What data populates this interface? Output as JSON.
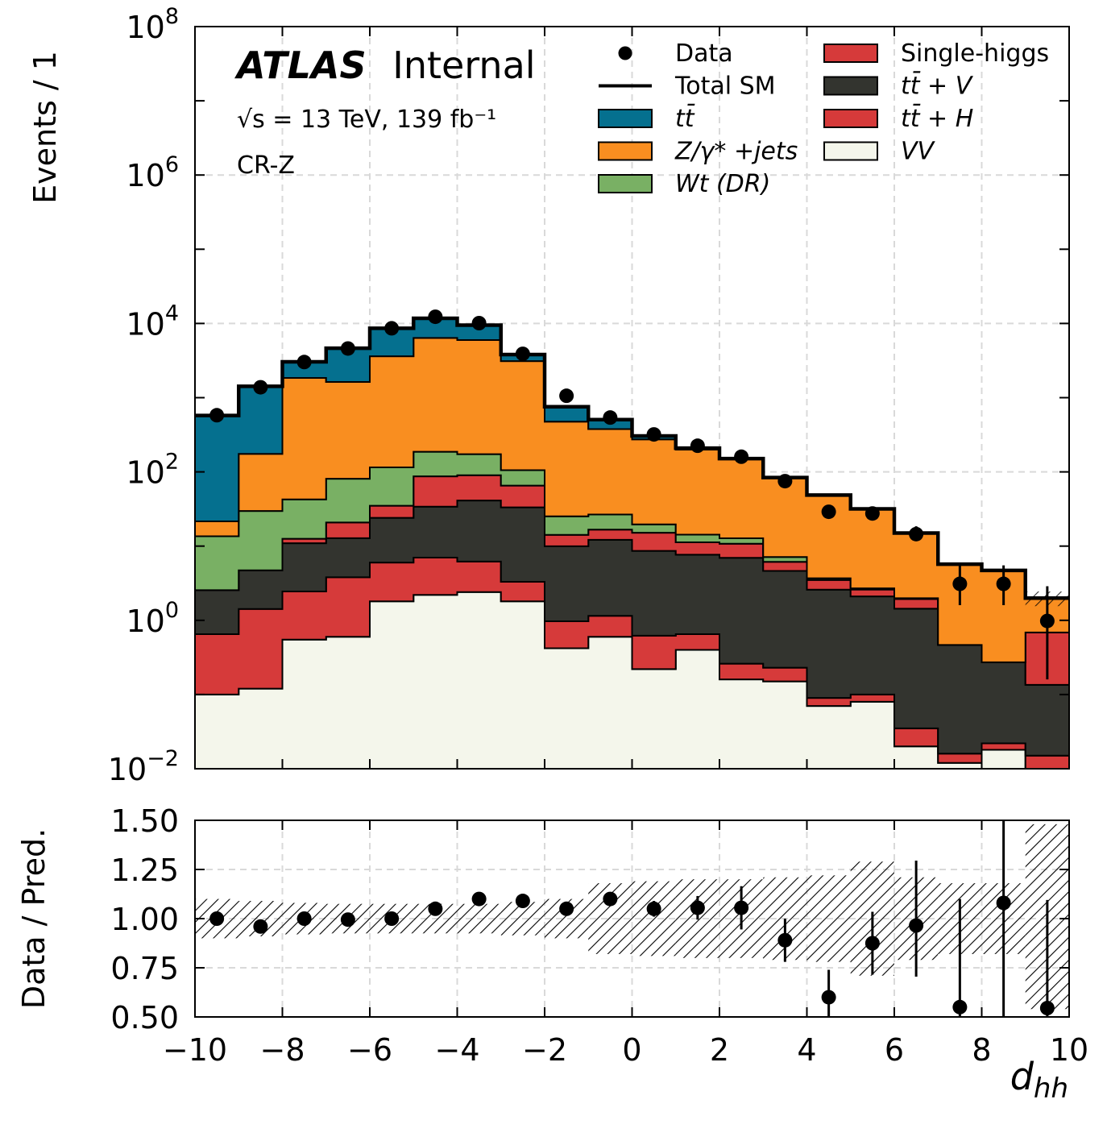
{
  "annotations": {
    "experiment": "ATLAS",
    "status": "Internal",
    "energy_lumi": "√s = 13 TeV, 139 fb⁻¹",
    "region": "CR-Z"
  },
  "chart_data": [
    {
      "type": "area",
      "subtype": "stacked-step-histogram-log",
      "ylabel": "Events / 1",
      "yscale": "log",
      "ylim": [
        0.01,
        100000000
      ],
      "xlim": [
        -10,
        10
      ],
      "bin_edges": [
        -10,
        -9,
        -8,
        -7,
        -6,
        -5,
        -4,
        -3,
        -2,
        -1,
        0,
        1,
        2,
        3,
        4,
        5,
        6,
        7,
        8,
        9,
        10
      ],
      "x_ticks": [
        -10,
        -8,
        -6,
        -4,
        -2,
        0,
        2,
        4,
        6,
        8,
        10
      ],
      "y_ticks": [
        {
          "value": 0.01,
          "base": "10",
          "exp": "−2"
        },
        {
          "value": 1,
          "base": "10",
          "exp": "0"
        },
        {
          "value": 100,
          "base": "10",
          "exp": "2"
        },
        {
          "value": 10000,
          "base": "10",
          "exp": "4"
        },
        {
          "value": 1000000,
          "base": "10",
          "exp": "6"
        },
        {
          "value": 100000000,
          "base": "10",
          "exp": "8"
        }
      ],
      "grid": true,
      "legend_position": "top-right",
      "series": [
        {
          "name": "VV",
          "color": "#f4f6eb",
          "values": [
            0.1,
            0.12,
            0.55,
            0.6,
            1.8,
            2.2,
            2.4,
            1.8,
            0.42,
            0.6,
            0.22,
            0.4,
            0.16,
            0.15,
            0.07,
            0.08,
            0.02,
            0.012,
            0.018,
            0.01
          ]
        },
        {
          "name": "Single-higgs",
          "color": "#d63a3a",
          "values": [
            0.55,
            1.3,
            1.9,
            3.2,
            4.2,
            4.8,
            3.8,
            1.5,
            0.55,
            0.55,
            0.4,
            0.25,
            0.1,
            0.08,
            0.02,
            0.02,
            0.015,
            0.004,
            0.004,
            0.005
          ]
        },
        {
          "name": "tt̄ + V",
          "color": "#33342f",
          "values": [
            1.9,
            3.3,
            8.5,
            9,
            18,
            27,
            35,
            30,
            9,
            11,
            8,
            7,
            6.7,
            4.4,
            2.5,
            2,
            1.4,
            0.45,
            0.25,
            0.12
          ]
        },
        {
          "name": "tt̄ + H",
          "color": "#d63a3a",
          "values": [
            0,
            0,
            1.6,
            8,
            11,
            53,
            49,
            32,
            4.2,
            4.5,
            6.5,
            3.6,
            3.8,
            1.5,
            0.9,
            0.5,
            0.5,
            0,
            0,
            0.55
          ]
        },
        {
          "name": "Wt (DR)",
          "color": "#79b064",
          "values": [
            11,
            25,
            30,
            60,
            80,
            100,
            83,
            40,
            11,
            10,
            4.5,
            3,
            2,
            1,
            0.2,
            0.1,
            0.05,
            0,
            0,
            0
          ]
        },
        {
          "name": "Z/γ* +jets",
          "color": "#f98e20",
          "values": [
            8,
            145,
            1800,
            1550,
            3500,
            6200,
            5800,
            3000,
            450,
            350,
            255,
            185,
            135,
            75,
            45,
            29,
            13,
            5.2,
            4.4,
            1.3
          ]
        },
        {
          "name": "tt̄",
          "color": "#05708f",
          "values": [
            550,
            1250,
            1200,
            3000,
            5000,
            5500,
            3500,
            700,
            280,
            130,
            30,
            10,
            3,
            2,
            0,
            0,
            0,
            0,
            0,
            0
          ]
        }
      ],
      "total_sm": [
        575,
        1425,
        3045,
        4632,
        8616,
        11730,
        9474,
        3805,
        755,
        506,
        305,
        209,
        151,
        84,
        48.7,
        31.7,
        15,
        5.7,
        4.7,
        1.99
      ],
      "data_points": {
        "name": "Data",
        "x": [
          -9.5,
          -8.5,
          -7.5,
          -6.5,
          -5.5,
          -4.5,
          -3.5,
          -2.5,
          -1.5,
          -0.5,
          0.5,
          1.5,
          2.5,
          3.5,
          4.5,
          5.5,
          6.5,
          7.5,
          8.5,
          9.5
        ],
        "y": [
          580,
          1380,
          3020,
          4600,
          8600,
          12300,
          10100,
          3900,
          1060,
          540,
          320,
          225,
          160,
          75,
          29,
          27.5,
          14.5,
          3.1,
          3.1,
          0.98
        ],
        "err_low": [
          0,
          0,
          0,
          0,
          0,
          0,
          0,
          0,
          0,
          0,
          0,
          0,
          0,
          0,
          0,
          0,
          2.5,
          1.5,
          1.5,
          0.82
        ],
        "err_high": [
          0,
          0,
          0,
          0,
          0,
          0,
          0,
          0,
          0,
          0,
          0,
          0,
          0,
          0,
          0,
          0,
          4.0,
          2.4,
          2.4,
          1.9
        ]
      },
      "uncertainty_label_hidden": true
    },
    {
      "type": "scatter",
      "subtype": "ratio-panel",
      "ylabel": "Data / Pred.",
      "xlabel": "d_hh",
      "ylim": [
        0.5,
        1.5
      ],
      "xlim": [
        -10,
        10
      ],
      "y_ticks": [
        "0.50",
        "0.75",
        "1.00",
        "1.25",
        "1.50"
      ],
      "y_tick_values": [
        0.5,
        0.75,
        1.0,
        1.25,
        1.5
      ],
      "x_tick_labels": [
        "−10",
        "−8",
        "−6",
        "−4",
        "−2",
        "0",
        "2",
        "4",
        "6",
        "8",
        "10"
      ],
      "x_tick_values": [
        -10,
        -8,
        -6,
        -4,
        -2,
        0,
        2,
        4,
        6,
        8,
        10
      ],
      "grid": true,
      "band_low": [
        0.9,
        0.91,
        0.92,
        0.925,
        0.925,
        0.925,
        0.925,
        0.915,
        0.9,
        0.82,
        0.81,
        0.8,
        0.8,
        0.79,
        0.78,
        0.71,
        0.79,
        0.82,
        0.82,
        0.54
      ],
      "band_high": [
        1.1,
        1.09,
        1.08,
        1.075,
        1.075,
        1.075,
        1.075,
        1.085,
        1.1,
        1.18,
        1.19,
        1.2,
        1.2,
        1.21,
        1.22,
        1.29,
        1.21,
        1.18,
        1.18,
        1.48
      ],
      "points": {
        "x": [
          -9.5,
          -8.5,
          -7.5,
          -6.5,
          -5.5,
          -4.5,
          -3.5,
          -2.5,
          -1.5,
          -0.5,
          0.5,
          1.5,
          2.5,
          3.5,
          4.5,
          5.5,
          6.5,
          7.5,
          8.5,
          9.5
        ],
        "y": [
          1.0,
          0.96,
          1.0,
          0.995,
          1.0,
          1.05,
          1.1,
          1.09,
          1.05,
          1.1,
          1.05,
          1.055,
          1.055,
          0.89,
          0.6,
          0.875,
          0.965,
          0.55,
          1.08,
          0.545
        ],
        "err_low": [
          0,
          0,
          0,
          0,
          0,
          0,
          0,
          0,
          0,
          0,
          0.04,
          0.06,
          0.11,
          0.11,
          0.14,
          0.16,
          0.26,
          0.55,
          0.6,
          0.55
        ],
        "err_high": [
          0,
          0,
          0,
          0,
          0,
          0,
          0,
          0,
          0,
          0,
          0.04,
          0.06,
          0.11,
          0.11,
          0.14,
          0.16,
          0.33,
          0.55,
          0.6,
          0.55
        ]
      }
    }
  ],
  "legend": {
    "col1": [
      {
        "label": "Data",
        "kind": "marker"
      },
      {
        "label": "Total SM",
        "kind": "line"
      },
      {
        "label": "tt̄",
        "kind": "patch",
        "color": "#05708f"
      },
      {
        "label": "Z/γ* +jets",
        "kind": "patch",
        "color": "#f98e20"
      },
      {
        "label": "Wt (DR)",
        "kind": "patch",
        "color": "#79b064"
      }
    ],
    "col2": [
      {
        "label": "Single-higgs",
        "kind": "patch",
        "color": "#d63a3a"
      },
      {
        "label": "tt̄ + V",
        "kind": "patch",
        "color": "#33342f"
      },
      {
        "label": "tt̄ + H",
        "kind": "patch",
        "color": "#d63a3a"
      },
      {
        "label": "VV",
        "kind": "patch",
        "color": "#f4f6eb"
      }
    ]
  }
}
